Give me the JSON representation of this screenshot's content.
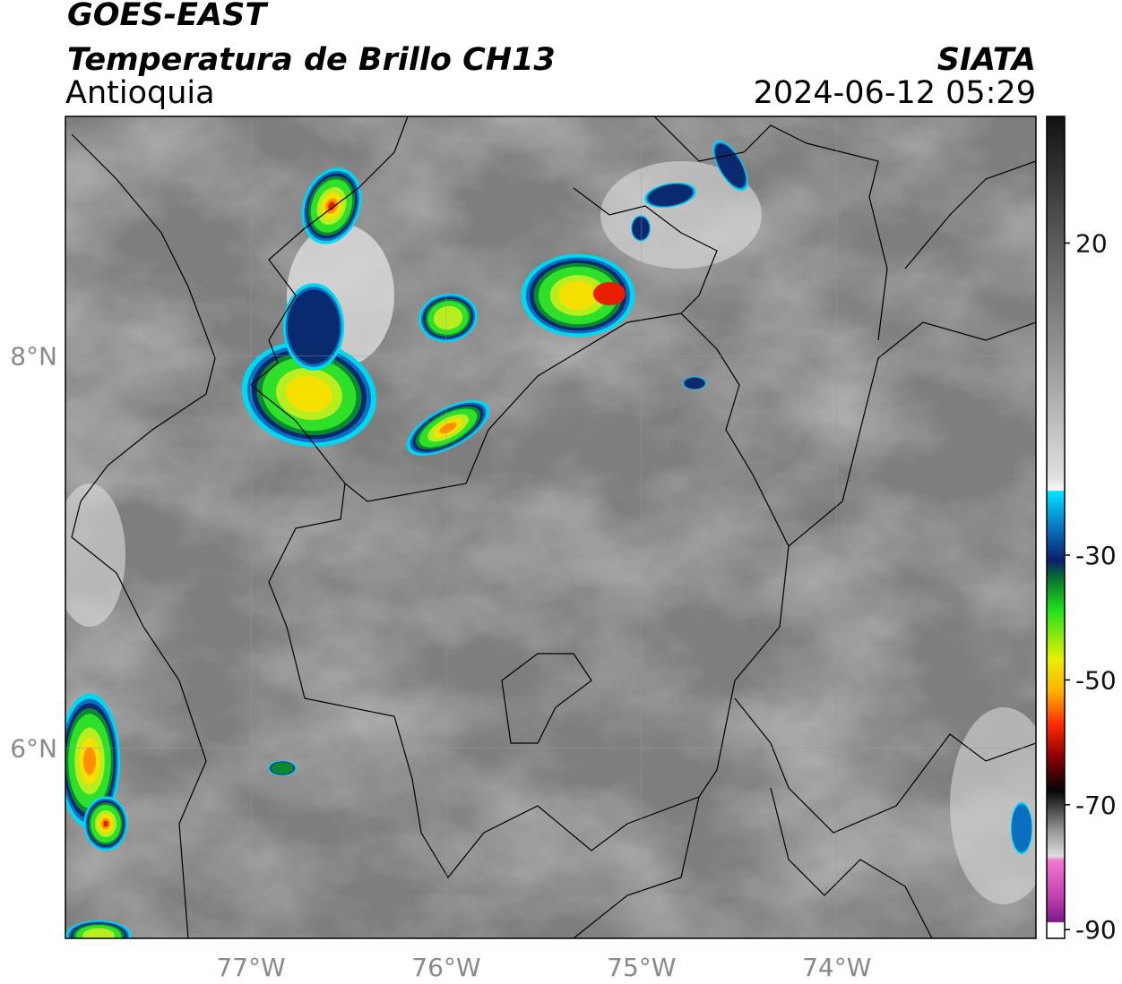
{
  "header": {
    "title": "GOES-EAST",
    "subtitle": "Temperatura de Brillo CH13",
    "region": "Antioquia",
    "source": "SIATA",
    "timestamp": "2024-06-12 05:29"
  },
  "map": {
    "lon_lim": [
      -77.95,
      -72.98
    ],
    "lat_lim": [
      5.03,
      9.22
    ],
    "lon_ticks": [
      {
        "value": -77,
        "label": "77°W"
      },
      {
        "value": -76,
        "label": "76°W"
      },
      {
        "value": -75,
        "label": "75°W"
      },
      {
        "value": -74,
        "label": "74°W"
      }
    ],
    "lat_ticks": [
      {
        "value": 8,
        "label": "8°N"
      },
      {
        "value": 6,
        "label": "6°N"
      }
    ]
  },
  "colorbar": {
    "lim": [
      40.3,
      -91.4
    ],
    "ticks": [
      20,
      -30,
      -50,
      -70,
      -90
    ]
  }
}
